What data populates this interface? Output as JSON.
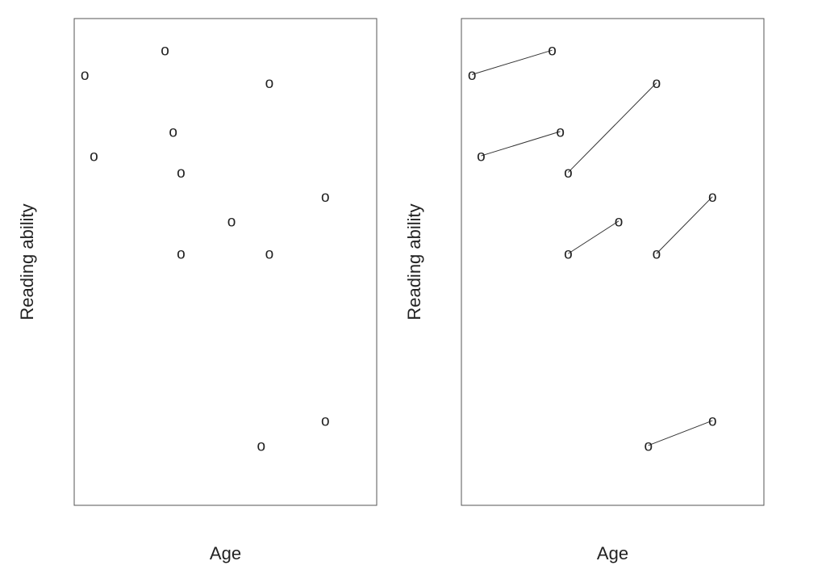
{
  "chart_data": [
    {
      "type": "scatter",
      "xlabel": "Age",
      "ylabel": "Reading ability",
      "marker": "o",
      "grid": false,
      "xlim": [
        0,
        10
      ],
      "ylim": [
        0,
        10
      ],
      "points": [
        {
          "x": 0.35,
          "y": 8.85
        },
        {
          "x": 3.0,
          "y": 9.35
        },
        {
          "x": 6.45,
          "y": 8.68
        },
        {
          "x": 0.65,
          "y": 7.18
        },
        {
          "x": 3.27,
          "y": 7.68
        },
        {
          "x": 3.53,
          "y": 6.84
        },
        {
          "x": 8.3,
          "y": 6.34
        },
        {
          "x": 5.2,
          "y": 5.84
        },
        {
          "x": 3.53,
          "y": 5.17
        },
        {
          "x": 6.45,
          "y": 5.17
        },
        {
          "x": 8.3,
          "y": 1.74
        },
        {
          "x": 6.18,
          "y": 1.23
        }
      ]
    },
    {
      "type": "line",
      "xlabel": "Age",
      "ylabel": "Reading ability",
      "marker": "o",
      "grid": false,
      "xlim": [
        0,
        10
      ],
      "ylim": [
        0,
        10
      ],
      "series": [
        {
          "x": [
            0.35,
            3.0
          ],
          "y": [
            8.85,
            9.35
          ]
        },
        {
          "x": [
            0.65,
            3.27
          ],
          "y": [
            7.18,
            7.68
          ]
        },
        {
          "x": [
            3.53,
            6.45
          ],
          "y": [
            6.84,
            8.68
          ]
        },
        {
          "x": [
            3.53,
            5.2
          ],
          "y": [
            5.17,
            5.84
          ]
        },
        {
          "x": [
            6.45,
            8.3
          ],
          "y": [
            5.17,
            6.34
          ]
        },
        {
          "x": [
            6.18,
            8.3
          ],
          "y": [
            1.23,
            1.74
          ]
        }
      ]
    }
  ]
}
